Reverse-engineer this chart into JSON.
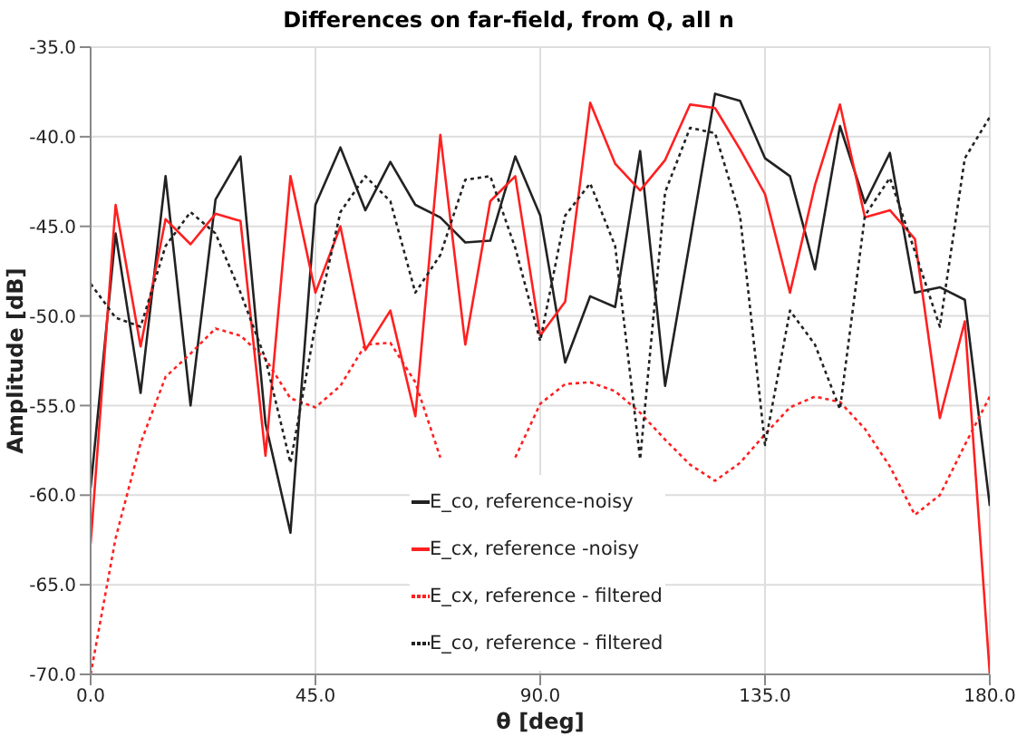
{
  "chart_data": {
    "type": "line",
    "title": "Differences on far-field, from Q, all n",
    "xlabel": "θ [deg]",
    "ylabel": "Amplitude [dB]",
    "x": [
      0,
      5,
      10,
      15,
      20,
      25,
      30,
      35,
      40,
      45,
      50,
      55,
      60,
      65,
      70,
      75,
      80,
      85,
      90,
      95,
      100,
      105,
      110,
      115,
      120,
      125,
      130,
      135,
      140,
      145,
      150,
      155,
      160,
      165,
      170,
      175,
      180
    ],
    "xlim": [
      0,
      180
    ],
    "xticks": [
      {
        "value": 0,
        "label": "0.0"
      },
      {
        "value": 45,
        "label": "45.0"
      },
      {
        "value": 90,
        "label": "90.0"
      },
      {
        "value": 135,
        "label": "135.0"
      },
      {
        "value": 180,
        "label": "180.0"
      }
    ],
    "ylim": [
      -70,
      -35
    ],
    "yticks": [
      {
        "value": -70,
        "label": "-70.0"
      },
      {
        "value": -65,
        "label": "-65.0"
      },
      {
        "value": -60,
        "label": "-60.0"
      },
      {
        "value": -55,
        "label": "-55.0"
      },
      {
        "value": -50,
        "label": "-50.0"
      },
      {
        "value": -45,
        "label": "-45.0"
      },
      {
        "value": -40,
        "label": "-40.0"
      },
      {
        "value": -35,
        "label": "-35.0"
      }
    ],
    "grid": true,
    "legend": "bottom",
    "marker": "none",
    "series": [
      {
        "name": "E_co, reference-noisy",
        "color": "#222222",
        "line_style": "solid",
        "values": [
          -59.6,
          -45.4,
          -54.3,
          -42.2,
          -55.0,
          -43.5,
          -41.1,
          -56.0,
          -62.1,
          -43.8,
          -40.6,
          -44.1,
          -41.4,
          -43.8,
          -44.5,
          -45.9,
          -45.8,
          -41.1,
          -44.4,
          -52.6,
          -48.9,
          -49.5,
          -40.8,
          -53.9,
          -45.8,
          -37.6,
          -38.0,
          -41.2,
          -42.2,
          -47.4,
          -39.4,
          -43.7,
          -40.9,
          -48.7,
          -48.4,
          -49.1,
          -60.6
        ]
      },
      {
        "name": "E_cx, reference -noisy",
        "color": "#ff2020",
        "line_style": "solid",
        "values": [
          -62.7,
          -43.8,
          -51.7,
          -44.6,
          -46.0,
          -44.3,
          -44.7,
          -57.8,
          -42.2,
          -48.7,
          -45.0,
          -51.9,
          -49.7,
          -55.6,
          -39.9,
          -51.6,
          -43.6,
          -42.2,
          -51.1,
          -49.2,
          -38.1,
          -41.5,
          -43.0,
          -41.3,
          -38.2,
          -38.4,
          -40.7,
          -43.2,
          -48.7,
          -42.7,
          -38.2,
          -44.5,
          -44.1,
          -45.7,
          -55.7,
          -50.3,
          -70.0
        ]
      },
      {
        "name": "E_cx, reference - filtered",
        "color": "#ff2020",
        "line_style": "dotted",
        "values": [
          -70.0,
          -62.4,
          -57.1,
          -53.4,
          -52.1,
          -50.7,
          -51.1,
          -52.4,
          -54.6,
          -55.1,
          -53.9,
          -51.6,
          -51.5,
          -53.7,
          -57.9,
          null,
          null,
          -57.9,
          -54.9,
          -53.8,
          -53.7,
          -54.2,
          -55.4,
          -56.9,
          -58.3,
          -59.2,
          -58.2,
          -56.6,
          -55.1,
          -54.5,
          -54.8,
          -56.3,
          -58.4,
          -61.1,
          -60.0,
          -57.2,
          -54.5
        ]
      },
      {
        "name": "E_co, reference - filtered",
        "color": "#222222",
        "line_style": "dotted",
        "values": [
          -48.2,
          -50.1,
          -50.6,
          -46.1,
          -44.2,
          -45.4,
          -48.7,
          -52.4,
          -58.2,
          -50.5,
          -44.2,
          -42.2,
          -43.6,
          -48.7,
          -46.6,
          -42.4,
          -42.2,
          -46.2,
          -51.4,
          -44.4,
          -42.6,
          -46.1,
          -58.0,
          -43.1,
          -39.5,
          -39.8,
          -44.4,
          -57.2,
          -49.7,
          -51.6,
          -55.2,
          -44.4,
          -42.3,
          -46.4,
          -50.6,
          -41.2,
          -38.9
        ]
      }
    ]
  }
}
